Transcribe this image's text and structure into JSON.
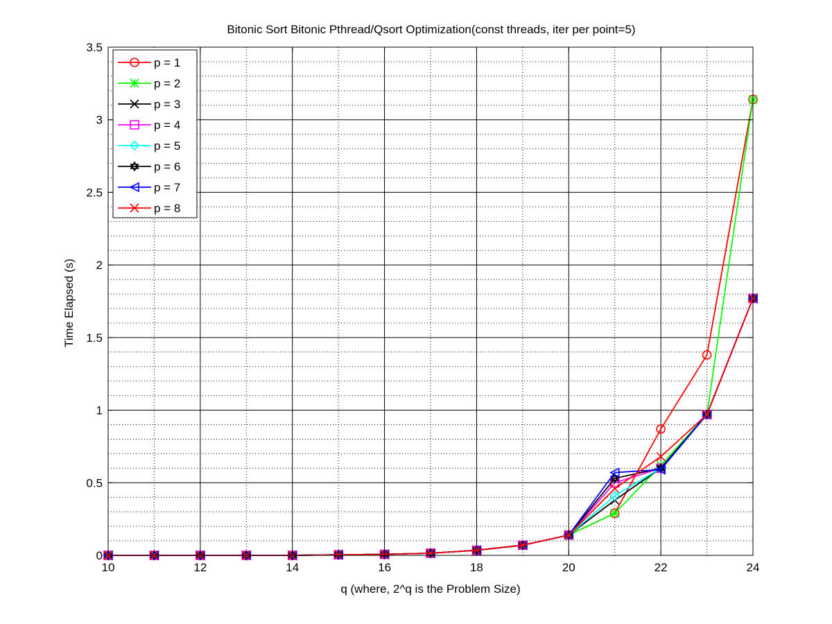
{
  "chart_data": {
    "type": "line",
    "title": "Bitonic Sort Bitonic Pthread/Qsort Optimization(const threads, iter per point=5)",
    "xlabel": "q (where, 2^q is the Problem Size)",
    "ylabel": "Time Elapsed (s)",
    "xlim": [
      10,
      24
    ],
    "ylim": [
      0,
      3.5
    ],
    "xticks": [
      10,
      12,
      14,
      16,
      18,
      20,
      22,
      24
    ],
    "yticks": [
      0,
      0.5,
      1,
      1.5,
      2,
      2.5,
      3,
      3.5
    ],
    "ytick_labels": [
      "0",
      "0.5",
      "1",
      "1.5",
      "2",
      "2.5",
      "3",
      "3.5"
    ],
    "grid": true,
    "minor_grid": true,
    "legend_position": "top-left",
    "x": [
      10,
      11,
      12,
      13,
      14,
      15,
      16,
      17,
      18,
      19,
      20,
      21,
      22,
      23,
      24
    ],
    "series": [
      {
        "name": "p = 1",
        "color": "#ff0000",
        "marker": "circle",
        "values": [
          0.0,
          0.0,
          0.0,
          0.0,
          0.0,
          0.004,
          0.007,
          0.015,
          0.035,
          0.07,
          0.14,
          0.29,
          0.87,
          1.38,
          3.14
        ]
      },
      {
        "name": "p = 2",
        "color": "#00ff00",
        "marker": "asterisk",
        "values": [
          0.0,
          0.0,
          0.0,
          0.0,
          0.0,
          0.004,
          0.007,
          0.015,
          0.035,
          0.07,
          0.14,
          0.29,
          0.62,
          0.97,
          3.14
        ]
      },
      {
        "name": "p = 3",
        "color": "#000000",
        "marker": "x",
        "values": [
          0.0,
          0.0,
          0.0,
          0.0,
          0.0,
          0.004,
          0.007,
          0.015,
          0.035,
          0.07,
          0.14,
          0.38,
          0.6,
          0.97,
          1.77
        ]
      },
      {
        "name": "p = 4",
        "color": "#ff00ff",
        "marker": "square",
        "values": [
          0.0,
          0.0,
          0.0,
          0.0,
          0.0,
          0.004,
          0.007,
          0.015,
          0.035,
          0.07,
          0.14,
          0.5,
          0.6,
          0.97,
          1.77
        ]
      },
      {
        "name": "p = 5",
        "color": "#00ffff",
        "marker": "diamond",
        "values": [
          0.0,
          0.0,
          0.0,
          0.0,
          0.0,
          0.004,
          0.007,
          0.015,
          0.035,
          0.07,
          0.14,
          0.41,
          0.6,
          0.97,
          1.77
        ]
      },
      {
        "name": "p = 6",
        "color": "#000000",
        "marker": "hexagram",
        "values": [
          0.0,
          0.0,
          0.0,
          0.0,
          0.0,
          0.004,
          0.007,
          0.015,
          0.035,
          0.07,
          0.14,
          0.53,
          0.6,
          0.97,
          1.77
        ]
      },
      {
        "name": "p = 7",
        "color": "#0000ff",
        "marker": "triangle-left",
        "values": [
          0.0,
          0.0,
          0.0,
          0.0,
          0.0,
          0.004,
          0.007,
          0.015,
          0.035,
          0.07,
          0.14,
          0.57,
          0.59,
          0.97,
          1.77
        ]
      },
      {
        "name": "p = 8",
        "color": "#ff0000",
        "marker": "x",
        "values": [
          0.0,
          0.0,
          0.0,
          0.0,
          0.0,
          0.004,
          0.007,
          0.015,
          0.035,
          0.07,
          0.14,
          0.46,
          0.68,
          0.97,
          1.77
        ]
      }
    ]
  }
}
